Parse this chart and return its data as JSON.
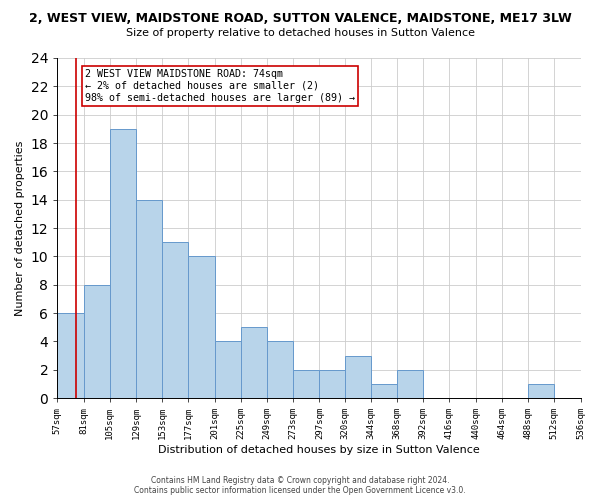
{
  "title": "2, WEST VIEW, MAIDSTONE ROAD, SUTTON VALENCE, MAIDSTONE, ME17 3LW",
  "subtitle": "Size of property relative to detached houses in Sutton Valence",
  "xlabel": "Distribution of detached houses by size in Sutton Valence",
  "ylabel": "Number of detached properties",
  "bin_edges": [
    57,
    81,
    105,
    129,
    153,
    177,
    201,
    225,
    249,
    273,
    297,
    320,
    344,
    368,
    392,
    416,
    440,
    464,
    488,
    512,
    536
  ],
  "bin_labels": [
    "57sqm",
    "81sqm",
    "105sqm",
    "129sqm",
    "153sqm",
    "177sqm",
    "201sqm",
    "225sqm",
    "249sqm",
    "273sqm",
    "297sqm",
    "320sqm",
    "344sqm",
    "368sqm",
    "392sqm",
    "416sqm",
    "440sqm",
    "464sqm",
    "488sqm",
    "512sqm",
    "536sqm"
  ],
  "counts": [
    6,
    8,
    19,
    14,
    11,
    10,
    4,
    5,
    4,
    2,
    2,
    3,
    1,
    2,
    0,
    0,
    0,
    0,
    1,
    0
  ],
  "bar_color": "#b8d4ea",
  "bar_edge_color": "#6699cc",
  "ylim": [
    0,
    24
  ],
  "yticks": [
    0,
    2,
    4,
    6,
    8,
    10,
    12,
    14,
    16,
    18,
    20,
    22,
    24
  ],
  "property_line_x": 74,
  "property_line_color": "#cc0000",
  "annotation_text": "2 WEST VIEW MAIDSTONE ROAD: 74sqm\n← 2% of detached houses are smaller (2)\n98% of semi-detached houses are larger (89) →",
  "annotation_box_color": "#ffffff",
  "annotation_box_edge": "#cc0000",
  "footer_line1": "Contains HM Land Registry data © Crown copyright and database right 2024.",
  "footer_line2": "Contains public sector information licensed under the Open Government Licence v3.0.",
  "background_color": "#ffffff",
  "grid_color": "#cccccc"
}
